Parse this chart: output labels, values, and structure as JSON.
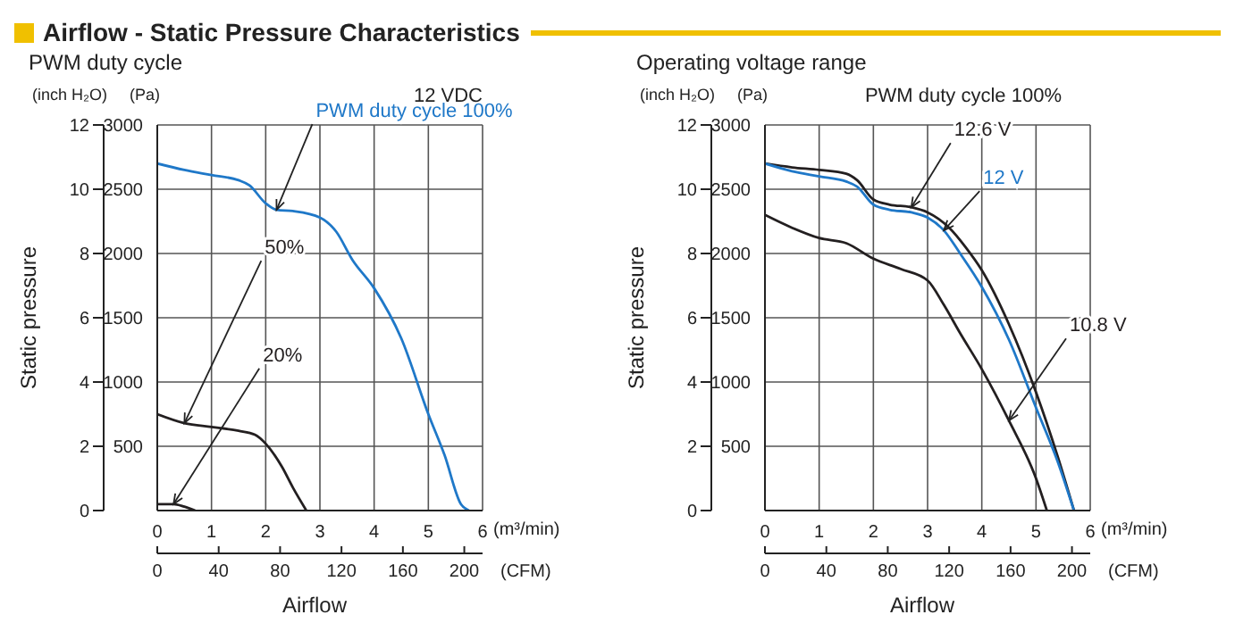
{
  "chart_data": [
    {
      "type": "line",
      "title": "Airflow - Static Pressure Characteristics",
      "subtitle": "PWM duty cycle",
      "xlabel": "Airflow",
      "ylabel": "Static pressure",
      "y2label": "(Pa)",
      "x2label": "(CFM)",
      "annotations": [
        "(m³/min)",
        "(inch H₂O)",
        "12 VDC"
      ],
      "series": [
        {
          "name": "PWM duty cycle 100%",
          "color": "#1f78c8",
          "axis": "y2",
          "x": [
            0,
            0.5,
            1,
            1.5,
            1.7,
            2,
            2.2,
            2.5,
            3,
            3.3,
            3.6,
            4,
            4.5,
            5,
            5.3,
            5.6,
            5.75
          ],
          "values": [
            2700,
            2650,
            2610,
            2570,
            2530,
            2390,
            2340,
            2330,
            2280,
            2170,
            1950,
            1730,
            1340,
            750,
            430,
            50,
            0
          ]
        },
        {
          "name": "50%",
          "color": "#231f20",
          "axis": "y2",
          "x": [
            0,
            0.5,
            1,
            1.5,
            1.8,
            2,
            2.3,
            2.5,
            2.75
          ],
          "values": [
            750,
            680,
            650,
            620,
            590,
            520,
            340,
            180,
            0
          ]
        },
        {
          "name": "20%",
          "color": "#231f20",
          "axis": "y2",
          "x": [
            0,
            0.3,
            0.5,
            0.7
          ],
          "values": [
            50,
            50,
            30,
            0
          ]
        }
      ],
      "xlim": [
        0,
        6
      ],
      "xticks": [
        0,
        1,
        2,
        3,
        4,
        5,
        6
      ],
      "x2lim": [
        0,
        211.9
      ],
      "x2ticks": [
        0,
        40,
        80,
        120,
        160,
        200
      ],
      "ylim": [
        0,
        12
      ],
      "yticks": [
        0,
        2,
        4,
        6,
        8,
        10,
        12
      ],
      "y2lim": [
        0,
        3000
      ],
      "y2ticks": [
        {
          "value": 0,
          "label": null
        },
        500,
        1000,
        1500,
        2000,
        2500,
        3000
      ],
      "grid": true,
      "legend": false,
      "marker": "none",
      "line_style": "solid"
    },
    {
      "type": "line",
      "title": "Operating voltage range",
      "xlabel": "Airflow",
      "ylabel": "Static pressure",
      "y2label": "(Pa)",
      "x2label": "(CFM)",
      "annotations": [
        "(m³/min)",
        "(inch H₂O)",
        "PWM duty cycle 100%"
      ],
      "series": [
        {
          "name": "12.6 V",
          "color": "#231f20",
          "axis": "y2",
          "x": [
            0,
            0.5,
            1,
            1.5,
            1.7,
            2,
            2.3,
            2.7,
            3,
            3.4,
            3.7,
            4,
            4.5,
            5,
            5.4,
            5.7
          ],
          "values": [
            2700,
            2670,
            2650,
            2620,
            2570,
            2420,
            2380,
            2360,
            2320,
            2200,
            2050,
            1870,
            1450,
            920,
            420,
            0
          ]
        },
        {
          "name": "12 V",
          "color": "#1f78c8",
          "axis": "y2",
          "x": [
            0,
            0.5,
            1,
            1.5,
            1.7,
            2,
            2.3,
            2.7,
            3,
            3.3,
            3.6,
            4,
            4.5,
            5,
            5.4,
            5.7
          ],
          "values": [
            2700,
            2640,
            2600,
            2560,
            2520,
            2380,
            2340,
            2320,
            2280,
            2180,
            2000,
            1740,
            1330,
            800,
            380,
            0
          ]
        },
        {
          "name": "10.8 V",
          "color": "#231f20",
          "axis": "y2",
          "x": [
            0,
            0.5,
            1,
            1.5,
            2,
            2.5,
            3,
            3.3,
            3.6,
            4,
            4.5,
            5,
            5.2
          ],
          "values": [
            2300,
            2200,
            2120,
            2080,
            1960,
            1880,
            1790,
            1600,
            1380,
            1100,
            700,
            250,
            0
          ]
        }
      ],
      "xlim": [
        0,
        6
      ],
      "xticks": [
        0,
        1,
        2,
        3,
        4,
        5,
        6
      ],
      "x2lim": [
        0,
        211.9
      ],
      "x2ticks": [
        0,
        40,
        80,
        120,
        160,
        200
      ],
      "ylim": [
        0,
        12
      ],
      "yticks": [
        0,
        2,
        4,
        6,
        8,
        10,
        12
      ],
      "y2lim": [
        0,
        3000
      ],
      "y2ticks": [
        {
          "value": 0,
          "label": null
        },
        500,
        1000,
        1500,
        2000,
        2500,
        3000
      ],
      "grid": true,
      "legend": false,
      "marker": "none",
      "line_style": "solid"
    }
  ]
}
